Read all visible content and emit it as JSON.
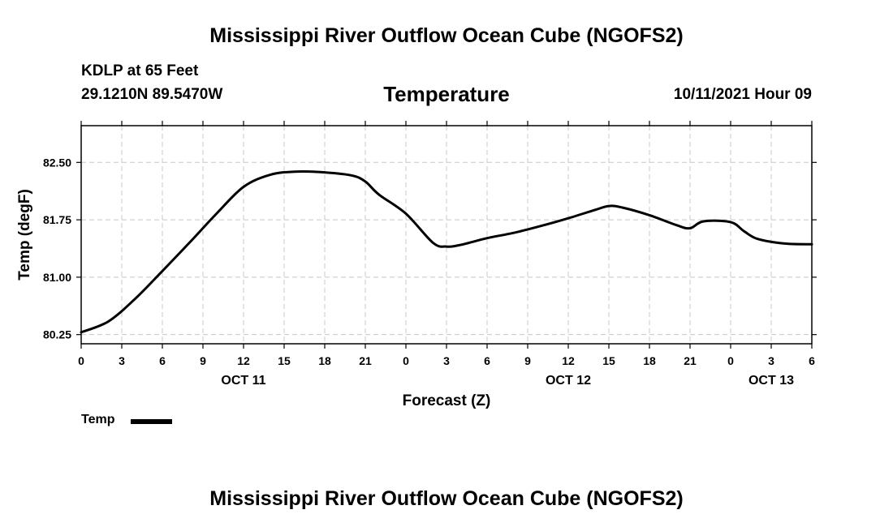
{
  "header": {
    "title": "Mississippi River Outflow Ocean Cube (NGOFS2)",
    "station_name": "KDLP at 65 Feet",
    "station_coords": "29.1210N  89.5470W",
    "datetime": "10/11/2021 Hour 09"
  },
  "footer": {
    "title": "Mississippi River Outflow Ocean Cube (NGOFS2)"
  },
  "legend": {
    "label": "Temp"
  },
  "colors": {
    "line": "#000000",
    "grid": "#c8c8c8",
    "background": "#ffffff"
  },
  "chart_data": {
    "type": "line",
    "title": "Temperature",
    "xlabel": "Forecast (Z)",
    "ylabel": "Temp (degF)",
    "xlim": [
      0,
      54
    ],
    "ylim": [
      80.13,
      82.98
    ],
    "x_ticks": [
      0,
      3,
      6,
      9,
      12,
      15,
      18,
      21,
      24,
      27,
      30,
      33,
      36,
      39,
      42,
      45,
      48,
      51,
      54
    ],
    "x_tick_labels": [
      "0",
      "3",
      "6",
      "9",
      "12",
      "15",
      "18",
      "21",
      "0",
      "3",
      "6",
      "9",
      "12",
      "15",
      "18",
      "21",
      "0",
      "3",
      "6"
    ],
    "y_ticks": [
      80.25,
      81.0,
      81.75,
      82.5
    ],
    "y_tick_labels": [
      "80.25",
      "81.00",
      "81.75",
      "82.50"
    ],
    "date_labels": [
      {
        "x": 12,
        "label": "OCT 11"
      },
      {
        "x": 36,
        "label": "OCT 12"
      },
      {
        "x": 51,
        "label": "OCT 13"
      }
    ],
    "grid": true,
    "legend_position": "bottom-left",
    "series": [
      {
        "name": "Temp",
        "x": [
          0,
          2,
          4,
          6,
          8,
          10,
          12,
          14,
          16,
          18,
          20,
          21,
          22,
          24,
          26,
          27,
          28,
          30,
          32,
          34,
          36,
          38,
          39,
          40,
          42,
          44,
          45,
          46,
          48,
          49,
          50,
          52,
          54
        ],
        "y": [
          80.28,
          80.42,
          80.72,
          81.08,
          81.45,
          81.83,
          82.18,
          82.34,
          82.38,
          82.37,
          82.33,
          82.25,
          82.08,
          81.83,
          81.45,
          81.4,
          81.42,
          81.51,
          81.58,
          81.67,
          81.77,
          81.88,
          81.93,
          81.91,
          81.81,
          81.68,
          81.64,
          81.73,
          81.72,
          81.6,
          81.5,
          81.44,
          81.43
        ]
      }
    ]
  }
}
